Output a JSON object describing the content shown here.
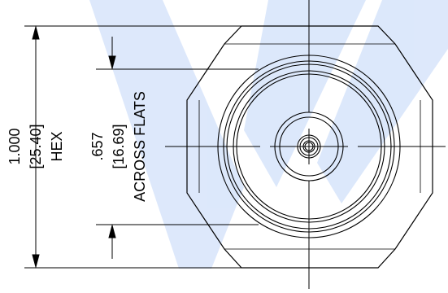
{
  "hex_dimension": {
    "inches": "1.000",
    "millimeters": "[25.40]",
    "label": "HEX"
  },
  "across_flats_dimension": {
    "inches": ".657",
    "millimeters": "[16.69]",
    "label": "ACROSS FLATS"
  },
  "watermark": {
    "color": "#d9e6fb"
  }
}
